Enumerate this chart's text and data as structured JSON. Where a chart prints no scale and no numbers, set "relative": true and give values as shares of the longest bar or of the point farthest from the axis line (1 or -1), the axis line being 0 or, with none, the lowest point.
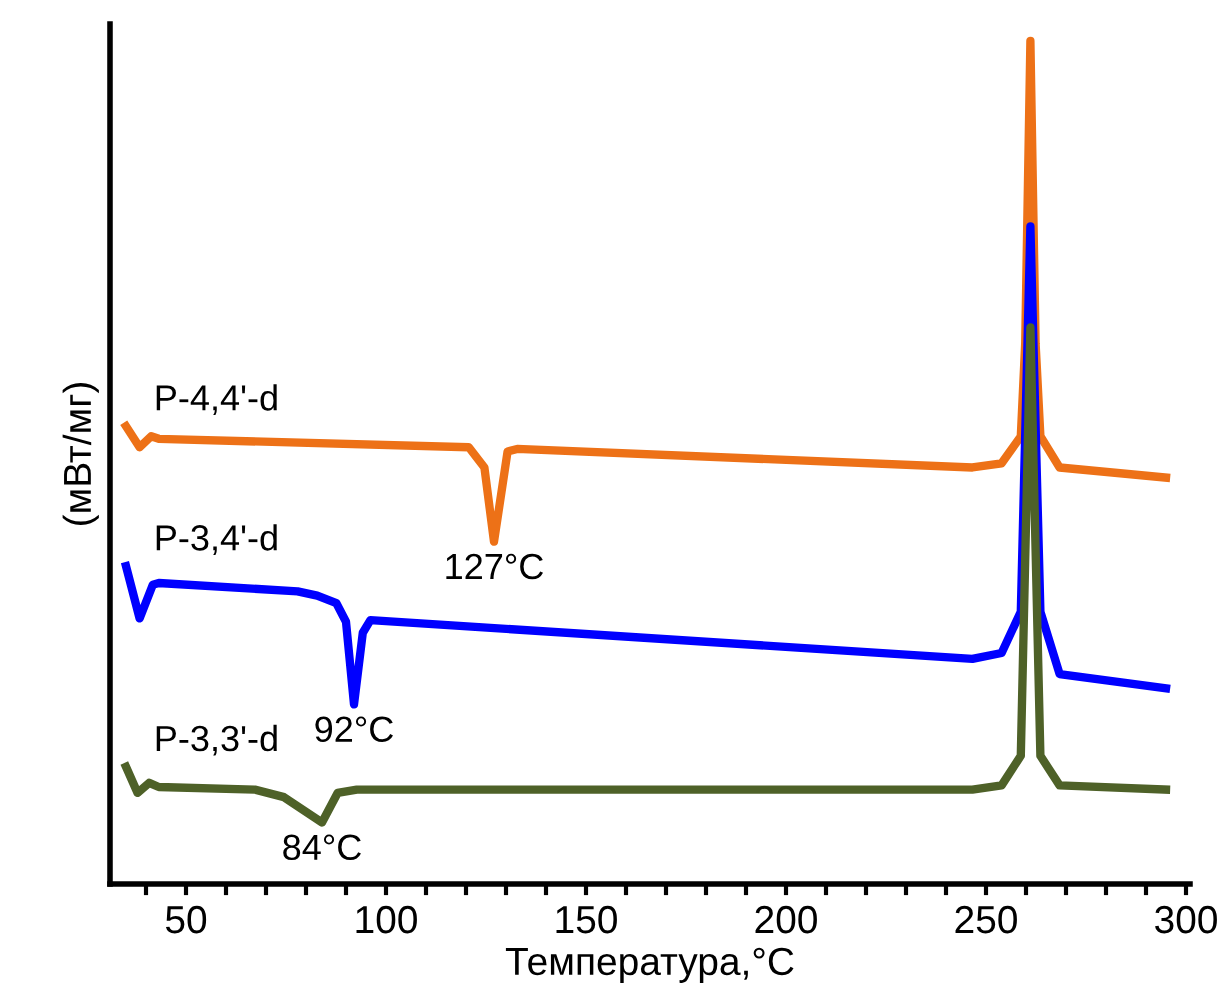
{
  "chart_data": {
    "type": "line",
    "relative": true,
    "xlabel": "Температура,°C",
    "ylabel": "(мВт/мг)",
    "xlim": [
      31,
      301
    ],
    "xticks": [
      {
        "value": 40,
        "label": null
      },
      50,
      {
        "value": 60,
        "label": null
      },
      {
        "value": 70,
        "label": null
      },
      {
        "value": 80,
        "label": null
      },
      {
        "value": 90,
        "label": null
      },
      100,
      {
        "value": 110,
        "label": null
      },
      {
        "value": 120,
        "label": null
      },
      {
        "value": 130,
        "label": null
      },
      {
        "value": 140,
        "label": null
      },
      150,
      {
        "value": 160,
        "label": null
      },
      {
        "value": 170,
        "label": null
      },
      {
        "value": 180,
        "label": null
      },
      {
        "value": 190,
        "label": null
      },
      200,
      {
        "value": 210,
        "label": null
      },
      {
        "value": 220,
        "label": null
      },
      {
        "value": 230,
        "label": null
      },
      {
        "value": 240,
        "label": null
      },
      250,
      {
        "value": 260,
        "label": null
      },
      {
        "value": 270,
        "label": null
      },
      {
        "value": 280,
        "label": null
      },
      {
        "value": 290,
        "label": null
      },
      300
    ],
    "grid": false,
    "legend": false,
    "marker": "none",
    "line_style": "solid",
    "series": [
      {
        "name": "P-4,4'-d",
        "color": "#ed7117",
        "x": [
          35,
          38.4,
          41.3,
          43.2,
          120.7,
          124.6,
          127,
          130.4,
          132.8,
          246.6,
          253.9,
          258.7,
          259.8,
          261.1,
          262.4,
          263.6,
          268.4,
          295
        ],
        "values": [
          0.543,
          0.518,
          0.531,
          0.528,
          0.518,
          0.494,
          0.406,
          0.513,
          0.516,
          0.494,
          0.499,
          0.531,
          0.641,
          1.0,
          0.641,
          0.531,
          0.494,
          0.482
        ]
      },
      {
        "name": "P-3,4'-d",
        "color": "#0000ff",
        "x": [
          35,
          38.4,
          41.7,
          43.2,
          77.9,
          82.8,
          87.6,
          90,
          92,
          94.2,
          96.1,
          246.6,
          253.9,
          258.7,
          261.1,
          263.6,
          268.4,
          295
        ],
        "values": [
          0.377,
          0.315,
          0.355,
          0.357,
          0.347,
          0.342,
          0.333,
          0.311,
          0.213,
          0.298,
          0.313,
          0.267,
          0.274,
          0.323,
          0.78,
          0.323,
          0.249,
          0.232
        ]
      },
      {
        "name": "P-3,3'-d",
        "color": "#4e6128",
        "x": [
          35,
          37.9,
          40.8,
          43.2,
          67.2,
          74.5,
          84,
          87.9,
          92.7,
          246.6,
          253.9,
          258.7,
          261.1,
          263.6,
          268.4,
          295
        ],
        "values": [
          0.139,
          0.108,
          0.12,
          0.115,
          0.112,
          0.103,
          0.073,
          0.108,
          0.112,
          0.112,
          0.117,
          0.152,
          0.66,
          0.152,
          0.117,
          0.112
        ]
      }
    ],
    "annotations": [
      {
        "text": "127°C",
        "x": 127,
        "y": 0.406
      },
      {
        "text": "92°C",
        "x": 92,
        "y": 0.213
      },
      {
        "text": "84°C",
        "x": 84,
        "y": 0.073
      }
    ]
  }
}
